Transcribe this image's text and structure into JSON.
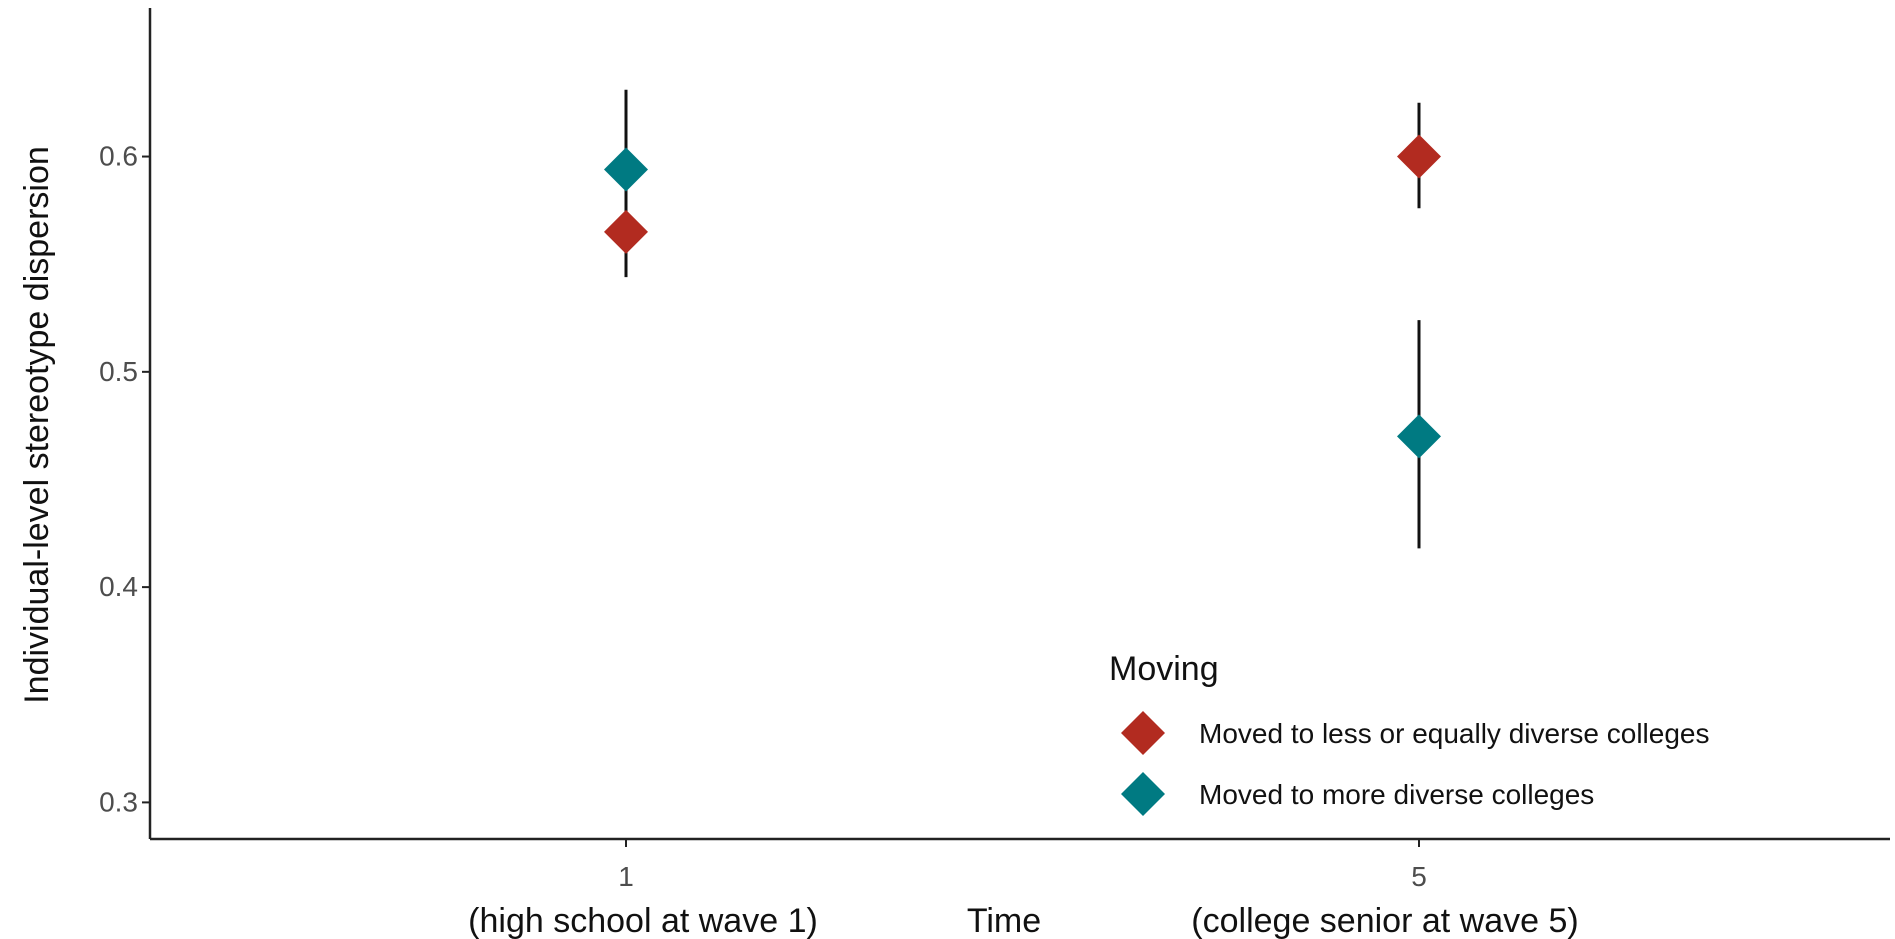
{
  "chart_data": {
    "type": "scatter",
    "xlabel": {
      "left": "(high school at wave 1)",
      "center": "Time",
      "right": "(college senior at wave 5)"
    },
    "ylabel": "Individual-level stereotype dispersion",
    "x_categories": [
      "1",
      "5"
    ],
    "ylim": [
      0.283,
      0.669
    ],
    "yticks": [
      "0.3",
      "0.4",
      "0.5",
      "0.6"
    ],
    "ytick_values": [
      0.3,
      0.4,
      0.5,
      0.6
    ],
    "legend": {
      "title": "Moving",
      "entries": [
        "Moved to less or equally diverse colleges",
        "Moved to more diverse colleges"
      ]
    },
    "series": [
      {
        "name": "Moved to less or equally diverse colleges",
        "color": "#b22b20",
        "points": [
          {
            "x": "1",
            "y": 0.565,
            "ci_low": 0.544,
            "ci_high": 0.631
          },
          {
            "x": "5",
            "y": 0.6,
            "ci_low": 0.576,
            "ci_high": 0.625
          }
        ]
      },
      {
        "name": "Moved to more diverse colleges",
        "color": "#007a82",
        "points": [
          {
            "x": "1",
            "y": 0.594,
            "ci_low": 0.544,
            "ci_high": 0.631
          },
          {
            "x": "5",
            "y": 0.47,
            "ci_low": 0.418,
            "ci_high": 0.524
          }
        ]
      }
    ],
    "grid": false,
    "legend_position": "bottom-right inside"
  }
}
